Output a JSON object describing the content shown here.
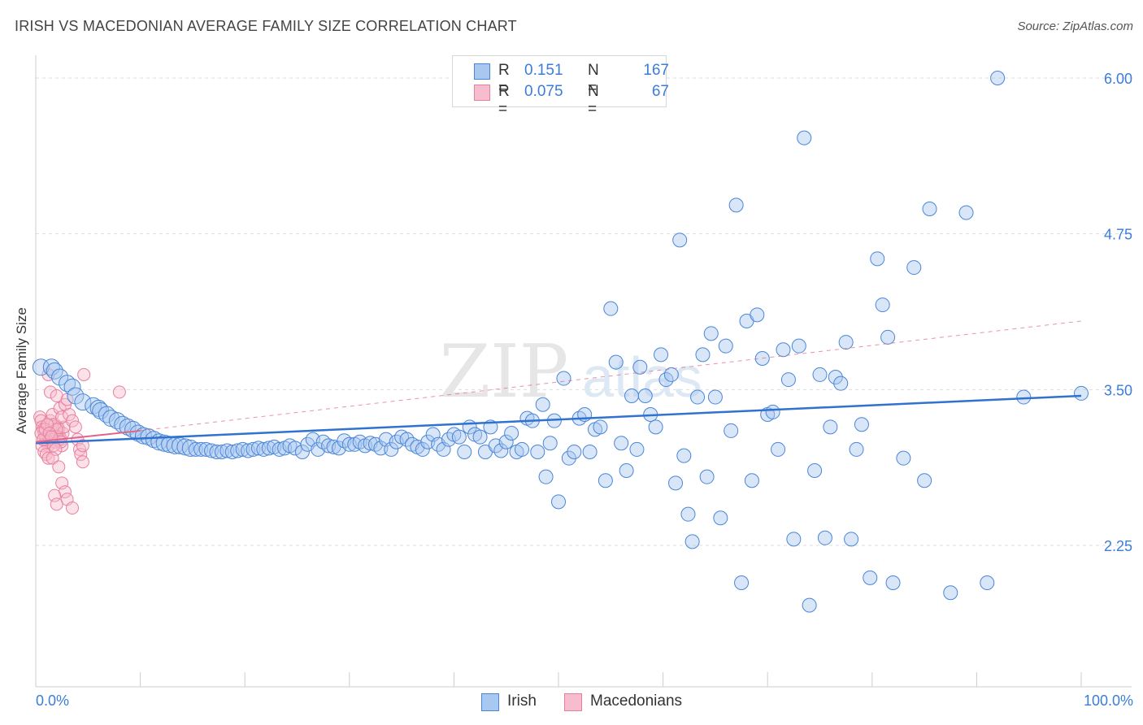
{
  "header": {
    "title": "IRISH VS MACEDONIAN AVERAGE FAMILY SIZE CORRELATION CHART",
    "source": "Source: ZipAtlas.com"
  },
  "legend": {
    "r_label": "R =",
    "n_label": "N =",
    "rows": [
      {
        "r": "0.151",
        "n": "167"
      },
      {
        "r": "0.075",
        "n": "67"
      }
    ]
  },
  "colors": {
    "irish_fill": "#a9c8f0",
    "irish_stroke": "#4a86d8",
    "irish_line": "#2f72d0",
    "mac_fill": "#f7bccd",
    "mac_stroke": "#e87f9f",
    "mac_line": "#e0648a",
    "tick_label": "#3b7dd8",
    "grid": "#dddddd"
  },
  "chart_data": {
    "type": "scatter",
    "title": "IRISH VS MACEDONIAN AVERAGE FAMILY SIZE CORRELATION CHART",
    "xlabel": "",
    "ylabel": "Average Family Size",
    "x_tick_labels": [
      "0.0%",
      "100.0%"
    ],
    "y_ticks": [
      2.25,
      3.5,
      4.75,
      6.0
    ],
    "y_tick_labels": [
      "2.25",
      "3.50",
      "4.75",
      "6.00"
    ],
    "xlim": [
      0,
      100
    ],
    "ylim": [
      1.0,
      6.2
    ],
    "grid": "horizontal dashed",
    "legend_position": "top-center",
    "watermark": "ZIPatlas",
    "series": [
      {
        "name": "Irish",
        "R": 0.151,
        "N": 167,
        "trend": {
          "x": [
            0,
            100
          ],
          "y": [
            3.07,
            3.45
          ],
          "style": "solid"
        },
        "points": [
          [
            0.5,
            3.68
          ],
          [
            1.5,
            3.68
          ],
          [
            1.8,
            3.65
          ],
          [
            2.3,
            3.6
          ],
          [
            3.0,
            3.55
          ],
          [
            3.5,
            3.52
          ],
          [
            3.8,
            3.45
          ],
          [
            4.5,
            3.4
          ],
          [
            5.5,
            3.37
          ],
          [
            6.0,
            3.35
          ],
          [
            6.2,
            3.33
          ],
          [
            6.8,
            3.3
          ],
          [
            7.2,
            3.27
          ],
          [
            7.8,
            3.25
          ],
          [
            8.3,
            3.22
          ],
          [
            8.8,
            3.2
          ],
          [
            9.3,
            3.18
          ],
          [
            9.8,
            3.15
          ],
          [
            10.3,
            3.13
          ],
          [
            10.8,
            3.12
          ],
          [
            11.3,
            3.1
          ],
          [
            11.8,
            3.08
          ],
          [
            12.3,
            3.07
          ],
          [
            12.8,
            3.06
          ],
          [
            13.3,
            3.05
          ],
          [
            13.8,
            3.05
          ],
          [
            14.3,
            3.04
          ],
          [
            14.8,
            3.03
          ],
          [
            15.3,
            3.02
          ],
          [
            15.8,
            3.02
          ],
          [
            16.3,
            3.02
          ],
          [
            16.8,
            3.01
          ],
          [
            17.3,
            3.0
          ],
          [
            17.8,
            3.0
          ],
          [
            18.3,
            3.01
          ],
          [
            18.8,
            3.0
          ],
          [
            19.3,
            3.01
          ],
          [
            19.8,
            3.02
          ],
          [
            20.3,
            3.01
          ],
          [
            20.8,
            3.02
          ],
          [
            21.3,
            3.03
          ],
          [
            21.8,
            3.02
          ],
          [
            22.3,
            3.03
          ],
          [
            22.8,
            3.04
          ],
          [
            23.3,
            3.02
          ],
          [
            23.8,
            3.03
          ],
          [
            24.3,
            3.05
          ],
          [
            24.8,
            3.03
          ],
          [
            25.5,
            3.0
          ],
          [
            26.0,
            3.06
          ],
          [
            26.5,
            3.1
          ],
          [
            27.0,
            3.02
          ],
          [
            27.5,
            3.08
          ],
          [
            28.0,
            3.05
          ],
          [
            28.5,
            3.04
          ],
          [
            29.0,
            3.03
          ],
          [
            29.5,
            3.09
          ],
          [
            30.0,
            3.06
          ],
          [
            30.5,
            3.06
          ],
          [
            31.0,
            3.08
          ],
          [
            31.5,
            3.05
          ],
          [
            32.0,
            3.07
          ],
          [
            32.5,
            3.06
          ],
          [
            33.0,
            3.03
          ],
          [
            33.5,
            3.1
          ],
          [
            34.0,
            3.02
          ],
          [
            34.5,
            3.08
          ],
          [
            35.0,
            3.12
          ],
          [
            35.5,
            3.1
          ],
          [
            36.0,
            3.06
          ],
          [
            36.5,
            3.04
          ],
          [
            37.0,
            3.02
          ],
          [
            37.5,
            3.08
          ],
          [
            38.0,
            3.14
          ],
          [
            38.5,
            3.06
          ],
          [
            39.0,
            3.02
          ],
          [
            39.5,
            3.1
          ],
          [
            40.0,
            3.14
          ],
          [
            40.5,
            3.12
          ],
          [
            41.0,
            3.0
          ],
          [
            41.5,
            3.2
          ],
          [
            42.0,
            3.14
          ],
          [
            42.5,
            3.12
          ],
          [
            43.0,
            3.0
          ],
          [
            43.5,
            3.2
          ],
          [
            44.0,
            3.05
          ],
          [
            44.5,
            3.01
          ],
          [
            45.0,
            3.08
          ],
          [
            45.5,
            3.15
          ],
          [
            46.0,
            3.0
          ],
          [
            46.5,
            3.02
          ],
          [
            47.0,
            3.27
          ],
          [
            47.5,
            3.25
          ],
          [
            48.0,
            3.0
          ],
          [
            48.5,
            3.38
          ],
          [
            48.8,
            2.8
          ],
          [
            49.2,
            3.07
          ],
          [
            49.6,
            3.25
          ],
          [
            50.0,
            2.6
          ],
          [
            50.5,
            3.59
          ],
          [
            51.0,
            2.95
          ],
          [
            51.5,
            3.0
          ],
          [
            52.0,
            3.27
          ],
          [
            52.5,
            3.3
          ],
          [
            53.0,
            3.0
          ],
          [
            53.5,
            3.18
          ],
          [
            54.0,
            3.2
          ],
          [
            54.5,
            2.77
          ],
          [
            55.0,
            4.15
          ],
          [
            55.5,
            3.72
          ],
          [
            56.0,
            3.07
          ],
          [
            56.5,
            2.85
          ],
          [
            57.0,
            3.45
          ],
          [
            57.5,
            3.02
          ],
          [
            57.8,
            3.68
          ],
          [
            58.3,
            3.45
          ],
          [
            58.8,
            3.3
          ],
          [
            59.3,
            3.2
          ],
          [
            59.8,
            3.78
          ],
          [
            60.3,
            3.58
          ],
          [
            60.8,
            3.62
          ],
          [
            61.2,
            2.75
          ],
          [
            61.6,
            4.7
          ],
          [
            62.0,
            2.97
          ],
          [
            62.4,
            2.5
          ],
          [
            62.8,
            2.28
          ],
          [
            63.3,
            3.44
          ],
          [
            63.8,
            3.78
          ],
          [
            64.2,
            2.8
          ],
          [
            64.6,
            3.95
          ],
          [
            65.0,
            3.44
          ],
          [
            65.5,
            2.47
          ],
          [
            66.0,
            3.85
          ],
          [
            66.5,
            3.17
          ],
          [
            67.0,
            4.98
          ],
          [
            67.5,
            1.95
          ],
          [
            68.0,
            4.05
          ],
          [
            68.5,
            2.77
          ],
          [
            69.0,
            4.1
          ],
          [
            69.5,
            3.75
          ],
          [
            70.0,
            3.3
          ],
          [
            70.5,
            3.32
          ],
          [
            71.0,
            3.02
          ],
          [
            71.5,
            3.82
          ],
          [
            72.0,
            3.58
          ],
          [
            72.5,
            2.3
          ],
          [
            73.0,
            3.85
          ],
          [
            73.5,
            5.52
          ],
          [
            74.0,
            1.77
          ],
          [
            74.5,
            2.85
          ],
          [
            75.0,
            3.62
          ],
          [
            75.5,
            2.31
          ],
          [
            76.0,
            3.2
          ],
          [
            76.5,
            3.6
          ],
          [
            77.0,
            3.55
          ],
          [
            77.5,
            3.88
          ],
          [
            78.0,
            2.3
          ],
          [
            78.5,
            3.02
          ],
          [
            79.0,
            3.22
          ],
          [
            79.8,
            1.99
          ],
          [
            80.5,
            4.55
          ],
          [
            81.0,
            4.18
          ],
          [
            81.5,
            3.92
          ],
          [
            82.0,
            1.95
          ],
          [
            83.0,
            2.95
          ],
          [
            84.0,
            4.48
          ],
          [
            85.0,
            2.77
          ],
          [
            85.5,
            4.95
          ],
          [
            87.5,
            1.87
          ],
          [
            89.0,
            4.92
          ],
          [
            91.0,
            1.95
          ],
          [
            92.0,
            6.0
          ],
          [
            94.5,
            3.44
          ],
          [
            100.0,
            3.47
          ]
        ]
      },
      {
        "name": "Macedonians",
        "R": 0.075,
        "N": 67,
        "trend_solid": {
          "x": [
            0,
            10
          ],
          "y": [
            3.08,
            3.17
          ]
        },
        "trend_dashed": {
          "x": [
            10,
            100
          ],
          "y": [
            3.17,
            4.05
          ]
        },
        "points": [
          [
            0.4,
            3.28
          ],
          [
            0.5,
            3.25
          ],
          [
            0.6,
            3.2
          ],
          [
            0.7,
            3.18
          ],
          [
            0.8,
            3.15
          ],
          [
            0.9,
            3.12
          ],
          [
            1.0,
            3.1
          ],
          [
            1.1,
            3.08
          ],
          [
            1.2,
            3.05
          ],
          [
            1.3,
            3.12
          ],
          [
            1.4,
            3.18
          ],
          [
            1.5,
            3.22
          ],
          [
            1.6,
            3.15
          ],
          [
            1.7,
            3.1
          ],
          [
            1.8,
            3.08
          ],
          [
            1.9,
            3.12
          ],
          [
            2.0,
            3.15
          ],
          [
            2.1,
            3.2
          ],
          [
            2.2,
            3.18
          ],
          [
            2.3,
            3.12
          ],
          [
            2.4,
            3.1
          ],
          [
            2.5,
            3.05
          ],
          [
            2.6,
            3.15
          ],
          [
            2.7,
            3.2
          ],
          [
            0.6,
            3.05
          ],
          [
            0.8,
            3.0
          ],
          [
            1.0,
            2.98
          ],
          [
            1.2,
            2.95
          ],
          [
            1.4,
            3.25
          ],
          [
            1.6,
            3.3
          ],
          [
            1.8,
            3.22
          ],
          [
            2.0,
            3.18
          ],
          [
            2.2,
            3.1
          ],
          [
            2.4,
            3.08
          ],
          [
            0.5,
            3.15
          ],
          [
            0.7,
            3.1
          ],
          [
            0.9,
            3.18
          ],
          [
            1.1,
            3.22
          ],
          [
            1.3,
            3.15
          ],
          [
            1.5,
            3.12
          ],
          [
            1.7,
            3.05
          ],
          [
            1.9,
            3.02
          ],
          [
            1.4,
            3.48
          ],
          [
            1.2,
            3.62
          ],
          [
            2.0,
            3.45
          ],
          [
            2.3,
            3.35
          ],
          [
            2.5,
            3.28
          ],
          [
            2.8,
            3.38
          ],
          [
            3.0,
            3.42
          ],
          [
            3.2,
            3.3
          ],
          [
            3.5,
            3.25
          ],
          [
            3.8,
            3.2
          ],
          [
            4.0,
            3.1
          ],
          [
            4.2,
            3.02
          ],
          [
            4.3,
            2.98
          ],
          [
            4.5,
            2.92
          ],
          [
            1.6,
            2.95
          ],
          [
            2.2,
            2.88
          ],
          [
            2.5,
            2.75
          ],
          [
            2.8,
            2.68
          ],
          [
            3.0,
            2.62
          ],
          [
            1.8,
            2.65
          ],
          [
            2.0,
            2.58
          ],
          [
            3.5,
            2.55
          ],
          [
            4.5,
            3.05
          ],
          [
            4.6,
            3.62
          ],
          [
            8.0,
            3.48
          ]
        ]
      }
    ]
  },
  "bottom_legend": {
    "items": [
      {
        "label": "Irish"
      },
      {
        "label": "Macedonians"
      }
    ]
  },
  "axis_labels": {
    "x_min": "0.0%",
    "x_max": "100.0%"
  }
}
